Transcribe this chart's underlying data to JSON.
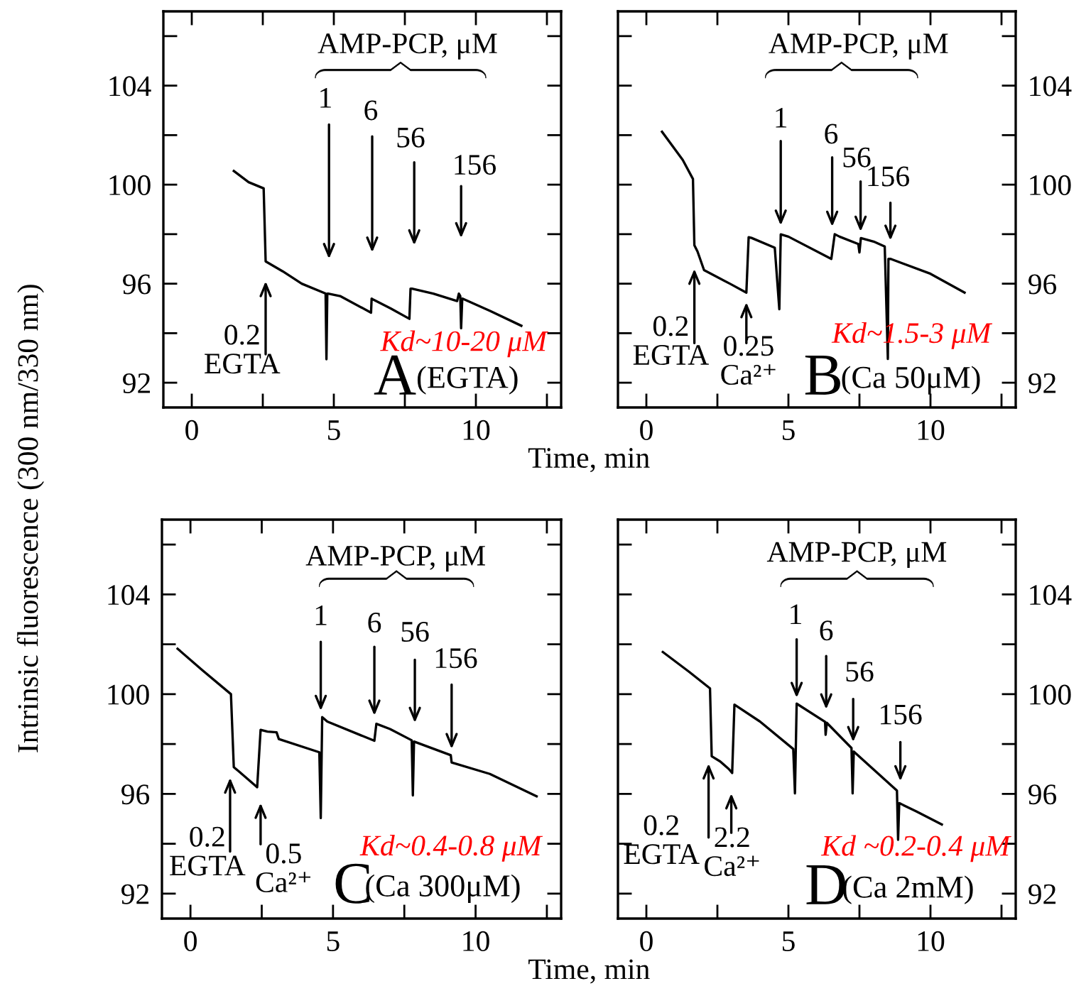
{
  "chart_data": [
    {
      "type": "line",
      "ylabel": "Intrinsic fluorescence (300 nm/330 nm)",
      "xlabel": "Time, min",
      "xlim": [
        -1,
        13
      ],
      "ylim": [
        91,
        107
      ],
      "xticks": [
        0,
        {
          "value": 2.5,
          "label": null
        },
        5,
        {
          "value": 7.5,
          "label": null
        },
        10,
        {
          "value": 12.5,
          "label": null
        }
      ],
      "yticks": [
        92,
        {
          "value": 94,
          "label": null
        },
        96,
        {
          "value": 98,
          "label": null
        },
        100,
        {
          "value": 102,
          "label": null
        },
        104,
        {
          "value": 106,
          "label": null
        }
      ],
      "series": [
        {
          "color": "#000000",
          "x": [
            1.48,
            2.0,
            2.53,
            2.6,
            3.2,
            3.87,
            4.71,
            4.74,
            4.77,
            4.8,
            5.22,
            6.31,
            6.33,
            6.4,
            7.0,
            7.66,
            7.7,
            7.75,
            8.5,
            9.34,
            9.4,
            9.45,
            9.48,
            9.52,
            10.5,
            11.6
          ],
          "values": [
            100.55,
            100.1,
            99.85,
            96.9,
            96.5,
            96.0,
            95.6,
            92.95,
            95.6,
            95.6,
            95.5,
            94.83,
            95.4,
            95.35,
            95.0,
            94.58,
            95.8,
            95.8,
            95.6,
            95.3,
            95.6,
            95.5,
            94.2,
            95.4,
            94.9,
            94.3
          ]
        }
      ],
      "annotations": [
        "0.2\nEGTA",
        "1",
        "6",
        "56",
        "156",
        "AMP-PCP, μM",
        "Kd~10-20 μM",
        "A",
        "(EGTA)"
      ]
    },
    {
      "type": "line",
      "xlim": [
        -1,
        13
      ],
      "ylim": [
        91,
        107
      ],
      "xticks": [
        0,
        {
          "value": 2.5,
          "label": null
        },
        5,
        {
          "value": 7.5,
          "label": null
        },
        10,
        {
          "value": 12.5,
          "label": null
        }
      ],
      "yticks": [
        92,
        {
          "value": 94,
          "label": null
        },
        96,
        {
          "value": 98,
          "label": null
        },
        100,
        {
          "value": 102,
          "label": null
        },
        104,
        {
          "value": 106,
          "label": null
        }
      ],
      "series": [
        {
          "color": "#000000",
          "x": [
            0.55,
            1.28,
            1.64,
            1.69,
            1.8,
            2.03,
            2.94,
            3.52,
            3.6,
            3.7,
            4.52,
            4.68,
            4.73,
            5.0,
            6.51,
            6.63,
            6.8,
            7.46,
            7.5,
            7.55,
            8.0,
            8.39,
            8.5,
            8.52,
            8.6,
            10.0,
            11.2
          ],
          "values": [
            102.14,
            101.0,
            100.23,
            97.55,
            97.3,
            96.55,
            96.0,
            95.64,
            97.88,
            97.85,
            97.45,
            94.97,
            97.99,
            97.9,
            97.0,
            98.0,
            97.9,
            97.6,
            97.26,
            97.84,
            97.7,
            97.5,
            92.96,
            97.0,
            97.0,
            96.4,
            95.64
          ]
        }
      ],
      "annotations": [
        "0.2\nEGTA",
        "0.25\nCa²⁺",
        "1",
        "6",
        "56",
        "156",
        "AMP-PCP, μM",
        "Kd~1.5-3 μM",
        "B",
        "(Ca 50μM)"
      ]
    },
    {
      "type": "line",
      "xlabel": "Time, min",
      "xlim": [
        -1,
        13
      ],
      "ylim": [
        91,
        107
      ],
      "xticks": [
        0,
        {
          "value": 2.5,
          "label": null
        },
        5,
        {
          "value": 7.5,
          "label": null
        },
        10,
        {
          "value": 12.5,
          "label": null
        }
      ],
      "yticks": [
        92,
        {
          "value": 94,
          "label": null
        },
        96,
        {
          "value": 98,
          "label": null
        },
        100,
        {
          "value": 102,
          "label": null
        },
        104,
        {
          "value": 106,
          "label": null
        }
      ],
      "series": [
        {
          "color": "#000000",
          "x": [
            -0.45,
            0.42,
            1.42,
            1.52,
            1.7,
            2.34,
            2.46,
            2.7,
            3.02,
            3.1,
            4.52,
            4.57,
            4.62,
            4.8,
            6.45,
            6.52,
            7.0,
            7.76,
            7.8,
            7.84,
            9.13,
            9.16,
            10.5,
            12.14
          ],
          "values": [
            101.82,
            100.96,
            100.0,
            97.07,
            96.9,
            96.27,
            98.57,
            98.5,
            98.47,
            98.2,
            97.67,
            95.03,
            99.08,
            98.9,
            98.13,
            98.81,
            98.6,
            98.15,
            95.94,
            98.1,
            97.55,
            97.26,
            96.8,
            95.9
          ]
        }
      ],
      "annotations": [
        "0.2\nEGTA",
        "0.5\nCa²⁺",
        "1",
        "6",
        "56",
        "156",
        "AMP-PCP, μM",
        "Kd~0.4-0.8 μM",
        "C",
        "(Ca 300μM)"
      ]
    },
    {
      "type": "line",
      "xlim": [
        -1,
        13
      ],
      "ylim": [
        91,
        107
      ],
      "xticks": [
        0,
        {
          "value": 2.5,
          "label": null
        },
        5,
        {
          "value": 7.5,
          "label": null
        },
        10,
        {
          "value": 12.5,
          "label": null
        }
      ],
      "yticks": [
        92,
        {
          "value": 94,
          "label": null
        },
        96,
        {
          "value": 98,
          "label": null
        },
        100,
        {
          "value": 102,
          "label": null
        },
        104,
        {
          "value": 106,
          "label": null
        }
      ],
      "series": [
        {
          "color": "#000000",
          "x": [
            0.58,
            1.5,
            2.24,
            2.3,
            2.6,
            2.9,
            3.02,
            3.1,
            4.0,
            5.17,
            5.23,
            5.29,
            6.29,
            6.31,
            6.35,
            7.22,
            7.26,
            7.3,
            8.82,
            8.86,
            8.9,
            9.5,
            10.4
          ],
          "values": [
            101.69,
            100.9,
            100.23,
            97.51,
            97.3,
            97.0,
            96.84,
            99.58,
            98.9,
            97.8,
            96.02,
            99.62,
            98.89,
            98.37,
            98.85,
            97.84,
            96.02,
            97.7,
            96.13,
            94.16,
            95.63,
            95.3,
            94.77
          ]
        }
      ],
      "annotations": [
        "0.2\nEGTA",
        "2.2\nCa²⁺",
        "1",
        "6",
        "56",
        "156",
        "AMP-PCP, μM",
        "Kd ~0.2-0.4 μM",
        "D",
        "(Ca 2mM)"
      ]
    }
  ]
}
